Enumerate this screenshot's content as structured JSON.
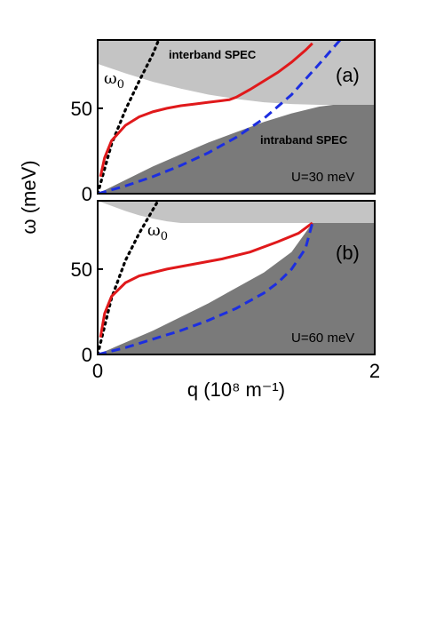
{
  "chart_data": {
    "type": "line",
    "xlabel": "q (10⁸ m⁻¹)",
    "ylabel": "ω (meV)",
    "xlim": [
      0,
      2
    ],
    "x_ticks": [
      "0",
      "2"
    ],
    "colors": {
      "light_region": "#c4c4c4",
      "dark_region": "#7a7a7a",
      "red_curve": "#e0191b",
      "blue_curve": "#1c2ee0",
      "black_curve": "#000000"
    },
    "panels": [
      {
        "tag": "(a)",
        "param_label": "U=30 meV",
        "ylim": [
          0,
          90
        ],
        "y_ticks": [
          "0",
          "50"
        ],
        "annotations": {
          "interband": "interband SPEC",
          "intraband": "intraband SPEC",
          "omega0": "ω",
          "omega0_sub": "0"
        },
        "interband_lower_edge": {
          "x": [
            0,
            0.2,
            0.4,
            0.6,
            0.8,
            1.0,
            1.2,
            1.4,
            1.6,
            1.7,
            2.0
          ],
          "y": [
            76,
            70.5,
            65.5,
            61.5,
            58,
            55.5,
            53.5,
            52.5,
            52,
            52,
            52
          ]
        },
        "intraband_upper_edge": {
          "x": [
            0,
            0.2,
            0.4,
            0.6,
            0.8,
            1.0,
            1.2,
            1.4,
            1.6,
            1.7,
            2.0
          ],
          "y": [
            0,
            8,
            16,
            23,
            30,
            36,
            42,
            47,
            51,
            52,
            52
          ]
        },
        "series": [
          {
            "name": "",
            "style": "dotted",
            "color": "#000000",
            "x": [
              0,
              0.1,
              0.2,
              0.3,
              0.4,
              0.45
            ],
            "y": [
              0,
              29,
              49,
              66,
              82,
              92
            ]
          },
          {
            "name": "",
            "style": "solid",
            "color": "#e0191b",
            "x": [
              0.02,
              0.05,
              0.1,
              0.2,
              0.3,
              0.4,
              0.5,
              0.6,
              0.7,
              0.8,
              0.9,
              0.95,
              1.0,
              1.1,
              1.2,
              1.3,
              1.4,
              1.5,
              1.55
            ],
            "y": [
              10,
              21,
              31,
              40,
              45,
              48,
              50,
              51.5,
              52.5,
              53.5,
              54.5,
              55,
              56.5,
              61,
              66,
              71,
              77,
              84,
              88
            ]
          },
          {
            "name": "",
            "style": "dashed",
            "color": "#1c2ee0",
            "x": [
              0,
              0.2,
              0.4,
              0.6,
              0.8,
              1.0,
              1.2,
              1.4,
              1.6,
              1.75
            ],
            "y": [
              0,
              4.5,
              10,
              16.5,
              24,
              33,
              44,
              58,
              76,
              90
            ]
          }
        ]
      },
      {
        "tag": "(b)",
        "param_label": "U=60 meV",
        "ylim": [
          0,
          90
        ],
        "y_ticks": [
          "0",
          "50"
        ],
        "annotations": {
          "omega0": "ω",
          "omega0_sub": "0"
        },
        "interband_lower_edge": {
          "x": [
            0,
            0.1,
            0.2,
            0.3,
            0.4,
            0.5,
            0.6,
            0.8,
            1.0,
            1.2,
            1.4,
            1.6,
            2.0
          ],
          "y": [
            90,
            87,
            84,
            81.5,
            79.5,
            78,
            77,
            77,
            77,
            77,
            77,
            77,
            77
          ]
        },
        "intraband_upper_edge": {
          "x": [
            0,
            0.2,
            0.4,
            0.6,
            0.8,
            1.0,
            1.2,
            1.4,
            1.55,
            1.6,
            2.0
          ],
          "y": [
            0,
            7,
            14,
            22,
            30,
            39,
            48,
            60,
            77,
            77,
            77
          ]
        },
        "series": [
          {
            "name": "",
            "style": "dotted",
            "color": "#000000",
            "x": [
              0,
              0.1,
              0.2,
              0.3,
              0.4,
              0.45
            ],
            "y": [
              0,
              33,
              55,
              71,
              85,
              92
            ]
          },
          {
            "name": "",
            "style": "solid",
            "color": "#e0191b",
            "x": [
              0.02,
              0.05,
              0.1,
              0.2,
              0.3,
              0.5,
              0.7,
              0.9,
              1.1,
              1.3,
              1.45,
              1.55
            ],
            "y": [
              10,
              24,
              34,
              42,
              46,
              50,
              53,
              56,
              60,
              66,
              71,
              77
            ]
          },
          {
            "name": "",
            "style": "dashed",
            "color": "#1c2ee0",
            "x": [
              0,
              0.2,
              0.4,
              0.6,
              0.8,
              1.0,
              1.2,
              1.3,
              1.4,
              1.5,
              1.55
            ],
            "y": [
              0,
              4,
              9,
              14,
              20,
              27,
              36,
              42,
              50,
              62,
              77
            ]
          }
        ]
      }
    ]
  }
}
